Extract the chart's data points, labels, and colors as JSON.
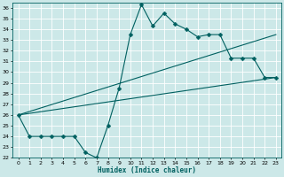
{
  "title": "",
  "xlabel": "Humidex (Indice chaleur)",
  "xlim": [
    -0.5,
    23.5
  ],
  "ylim": [
    22,
    36.5
  ],
  "yticks": [
    22,
    23,
    24,
    25,
    26,
    27,
    28,
    29,
    30,
    31,
    32,
    33,
    34,
    35,
    36
  ],
  "xticks": [
    0,
    1,
    2,
    3,
    4,
    5,
    6,
    7,
    8,
    9,
    10,
    11,
    12,
    13,
    14,
    15,
    16,
    17,
    18,
    19,
    20,
    21,
    22,
    23
  ],
  "bg_color": "#cce8e8",
  "grid_color": "#ffffff",
  "line_color": "#006060",
  "lines": [
    {
      "x": [
        0,
        1,
        2,
        3,
        4,
        5,
        6,
        7,
        8,
        9,
        10,
        11,
        12,
        13,
        14,
        15,
        16,
        17,
        18,
        19,
        20,
        21,
        22,
        23
      ],
      "y": [
        26,
        24,
        24,
        24,
        24,
        24,
        22.5,
        22,
        25,
        28.5,
        33.5,
        36.3,
        34.3,
        35.5,
        34.5,
        34,
        33.3,
        33.5,
        33.5,
        31.3,
        31.3,
        31.3,
        29.5,
        29.5
      ],
      "has_marker": true,
      "markersize": 2.5
    },
    {
      "x": [
        0,
        23
      ],
      "y": [
        26,
        33.5
      ],
      "has_marker": false
    },
    {
      "x": [
        0,
        23
      ],
      "y": [
        26,
        29.5
      ],
      "has_marker": false
    }
  ]
}
